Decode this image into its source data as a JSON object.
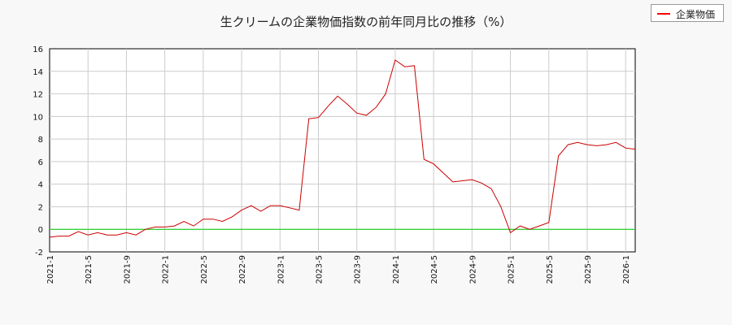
{
  "chart_data": {
    "type": "line",
    "title": "生クリームの企業物価指数の前年同月比の推移（%）",
    "xlabel": "",
    "ylabel": "",
    "ylim": [
      -2,
      16
    ],
    "y_ticks": [
      -2,
      0,
      2,
      4,
      6,
      8,
      10,
      12,
      14,
      16
    ],
    "x_ticks": [
      "2021-1",
      "2021-5",
      "2021-9",
      "2022-1",
      "2022-5",
      "2022-9",
      "2023-1",
      "2023-5",
      "2023-9",
      "2024-1",
      "2024-5",
      "2024-9",
      "2025-1",
      "2025-5",
      "2025-9",
      "2026-1"
    ],
    "x_range": [
      "2021-01",
      "2026-02"
    ],
    "grid": true,
    "legend_position": "top-right",
    "zero_line_color": "#00cc00",
    "series": [
      {
        "name": "企業物価",
        "color": "#cc0000",
        "x": [
          "2021-01",
          "2021-02",
          "2021-03",
          "2021-04",
          "2021-05",
          "2021-06",
          "2021-07",
          "2021-08",
          "2021-09",
          "2021-10",
          "2021-11",
          "2021-12",
          "2022-01",
          "2022-02",
          "2022-03",
          "2022-04",
          "2022-05",
          "2022-06",
          "2022-07",
          "2022-08",
          "2022-09",
          "2022-10",
          "2022-11",
          "2022-12",
          "2023-01",
          "2023-02",
          "2023-03",
          "2023-04",
          "2023-05",
          "2023-06",
          "2023-07",
          "2023-08",
          "2023-09",
          "2023-10",
          "2023-11",
          "2023-12",
          "2024-01",
          "2024-02",
          "2024-03",
          "2024-04",
          "2024-05",
          "2024-06",
          "2024-07",
          "2024-08",
          "2024-09",
          "2024-10",
          "2024-11",
          "2024-12",
          "2025-01",
          "2025-02",
          "2025-03",
          "2025-04",
          "2025-05",
          "2025-06",
          "2025-07",
          "2025-08",
          "2025-09",
          "2025-10",
          "2025-11",
          "2025-12",
          "2026-01",
          "2026-02"
        ],
        "values": [
          -0.7,
          -0.6,
          -0.6,
          -0.2,
          -0.5,
          -0.3,
          -0.5,
          -0.5,
          -0.3,
          -0.5,
          0.0,
          0.2,
          0.2,
          0.3,
          0.7,
          0.3,
          0.9,
          0.9,
          0.7,
          1.1,
          1.7,
          2.1,
          1.6,
          2.1,
          2.1,
          1.9,
          1.7,
          9.8,
          9.9,
          10.9,
          11.8,
          11.1,
          10.3,
          10.1,
          10.8,
          12.0,
          15.0,
          14.4,
          14.5,
          6.2,
          5.8,
          5.0,
          4.2,
          4.3,
          4.4,
          4.1,
          3.6,
          2.0,
          -0.3,
          0.3,
          0.0,
          0.3,
          0.6,
          6.5,
          7.5,
          7.7,
          7.5,
          7.4,
          7.5,
          7.7,
          7.2,
          7.1
        ]
      }
    ]
  }
}
